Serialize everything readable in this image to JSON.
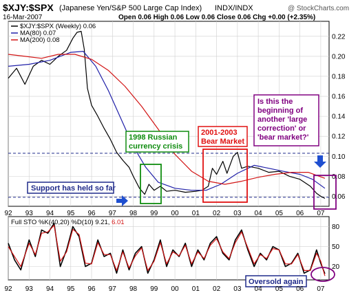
{
  "header": {
    "symbol": "$XJY:$SPX",
    "description": "(Japanese Yen/S&P 500 Large Cap Index)",
    "exchange": "INDX/INDX",
    "watermark": "@ StockCharts.com",
    "date": "16-Mar-2007",
    "ohlc": "Open 0.06  High 0.06  Low 0.06  Close 0.06  Chg +0.00 (+2.35%)"
  },
  "main_legend": [
    {
      "label": "$XJY:$SPX (Weekly) 0.06",
      "color": "#000000"
    },
    {
      "label": "MA(80) 0.07",
      "color": "#1f1fa8"
    },
    {
      "label": "MA(200) 0.08",
      "color": "#d21414"
    }
  ],
  "sto_legend": {
    "prefix": "Full STO %K(40,20) %D(10) 9.21, ",
    "value2": "6.01",
    "value2_color": "#d21414"
  },
  "annotations": {
    "russian": [
      "1998 Russian",
      "currency crisis"
    ],
    "bear": [
      "2001-2003",
      "Bear Market"
    ],
    "question": [
      "Is this the",
      "beginning of",
      "another 'large",
      "correction' or",
      "'bear market?'"
    ],
    "support": "Support has held so far",
    "oversold": "Oversold again"
  },
  "colors": {
    "price": "#000000",
    "ma80": "#1f1fa8",
    "ma200": "#d21414",
    "green": "#0f8c0f",
    "red": "#e01010",
    "purple": "#800080",
    "navy": "#1f2a8a",
    "grid": "#cfcfcf"
  },
  "chart_data": [
    {
      "type": "line",
      "title": "$XJY:$SPX",
      "x_ticks": [
        "92",
        "93",
        "94",
        "95",
        "96",
        "97",
        "98",
        "99",
        "00",
        "01",
        "02",
        "03",
        "04",
        "05",
        "06",
        "07"
      ],
      "x_range": [
        1992.0,
        2007.4
      ],
      "ylim": [
        0.05,
        0.235
      ],
      "y_ticks": [
        0.06,
        0.08,
        0.1,
        0.12,
        0.14,
        0.16,
        0.18,
        0.2,
        0.22
      ],
      "y_tick_labels": [
        "0.06",
        "0.08",
        "0.10",
        "0.12",
        "0.14",
        "0.16",
        "0.18",
        "0.20",
        "0.22"
      ],
      "grid": true,
      "reference_lines": [
        0.103,
        0.059
      ],
      "series": [
        {
          "name": "$XJY:$SPX (Weekly) 0.06",
          "x": [
            1992.0,
            1992.4,
            1992.8,
            1993.2,
            1993.6,
            1994.0,
            1994.4,
            1994.8,
            1995.1,
            1995.3,
            1995.5,
            1995.65,
            1995.8,
            1996.0,
            1996.3,
            1996.6,
            1996.9,
            1997.2,
            1997.5,
            1997.8,
            1998.0,
            1998.3,
            1998.55,
            1998.75,
            1999.0,
            1999.3,
            1999.6,
            2000.0,
            2000.5,
            2001.0,
            2001.3,
            2001.6,
            2001.8,
            2002.0,
            2002.3,
            2002.5,
            2002.8,
            2003.0,
            2003.2,
            2003.5,
            2004.0,
            2004.5,
            2005.0,
            2005.5,
            2006.0,
            2006.5,
            2006.8,
            2007.0,
            2007.2
          ],
          "values": [
            0.178,
            0.188,
            0.172,
            0.19,
            0.196,
            0.192,
            0.2,
            0.206,
            0.218,
            0.224,
            0.225,
            0.207,
            0.168,
            0.151,
            0.14,
            0.128,
            0.117,
            0.104,
            0.096,
            0.089,
            0.08,
            0.068,
            0.062,
            0.072,
            0.066,
            0.07,
            0.065,
            0.066,
            0.064,
            0.065,
            0.066,
            0.07,
            0.088,
            0.082,
            0.095,
            0.083,
            0.1,
            0.104,
            0.088,
            0.09,
            0.088,
            0.084,
            0.085,
            0.08,
            0.077,
            0.07,
            0.063,
            0.06,
            0.058
          ]
        },
        {
          "name": "MA(80) 0.07",
          "x": [
            1992.0,
            1993.0,
            1994.0,
            1995.0,
            1995.6,
            1996.2,
            1996.8,
            1997.4,
            1998.0,
            1998.6,
            1999.2,
            2000.0,
            2000.8,
            2001.5,
            2002.2,
            2003.0,
            2003.8,
            2004.5,
            2005.2,
            2006.0,
            2006.6,
            2007.2
          ],
          "values": [
            0.19,
            0.192,
            0.196,
            0.204,
            0.205,
            0.19,
            0.166,
            0.138,
            0.11,
            0.089,
            0.074,
            0.068,
            0.066,
            0.066,
            0.072,
            0.083,
            0.091,
            0.088,
            0.085,
            0.082,
            0.077,
            0.068
          ]
        },
        {
          "name": "MA(200) 0.08",
          "x": [
            1992.0,
            1992.8,
            1993.6,
            1994.4,
            1995.2,
            1996.0,
            1996.8,
            1997.6,
            1998.4,
            1999.2,
            2000.0,
            2000.8,
            2001.6,
            2002.4,
            2003.2,
            2004.0,
            2004.8,
            2005.6,
            2006.4,
            2007.2
          ],
          "values": [
            0.202,
            0.2,
            0.198,
            0.202,
            0.202,
            0.197,
            0.186,
            0.17,
            0.15,
            0.127,
            0.102,
            0.085,
            0.075,
            0.072,
            0.075,
            0.079,
            0.082,
            0.084,
            0.084,
            0.078
          ]
        }
      ]
    },
    {
      "type": "line",
      "title": "Full STO %K(40,20) %D(10) 9.21, 6.01",
      "x_ticks": [
        "92",
        "93",
        "94",
        "95",
        "96",
        "97",
        "98",
        "99",
        "00",
        "01",
        "02",
        "03",
        "04",
        "05",
        "06",
        "07"
      ],
      "x_range": [
        1992.0,
        2007.4
      ],
      "ylim": [
        0,
        95
      ],
      "y_ticks": [
        20,
        50,
        80
      ],
      "y_tick_labels": [
        "20",
        "50",
        "80"
      ],
      "grid": true,
      "series": [
        {
          "name": "%K",
          "x": [
            1992.0,
            1992.3,
            1992.6,
            1993.0,
            1993.3,
            1993.6,
            1993.9,
            1994.2,
            1994.5,
            1994.8,
            1995.1,
            1995.4,
            1995.7,
            1996.0,
            1996.3,
            1996.6,
            1996.9,
            1997.2,
            1997.5,
            1997.8,
            1998.1,
            1998.4,
            1998.7,
            1999.0,
            1999.3,
            1999.6,
            1999.9,
            2000.2,
            2000.5,
            2000.8,
            2001.1,
            2001.4,
            2001.7,
            2002.0,
            2002.3,
            2002.6,
            2002.9,
            2003.2,
            2003.5,
            2003.8,
            2004.1,
            2004.4,
            2004.7,
            2005.0,
            2005.3,
            2005.6,
            2005.9,
            2006.2,
            2006.5,
            2006.8,
            2007.0,
            2007.2
          ],
          "values": [
            55,
            30,
            15,
            60,
            35,
            75,
            70,
            85,
            20,
            45,
            80,
            65,
            20,
            25,
            60,
            35,
            40,
            10,
            45,
            15,
            40,
            50,
            10,
            30,
            60,
            20,
            45,
            35,
            55,
            20,
            45,
            30,
            55,
            65,
            40,
            30,
            60,
            75,
            45,
            20,
            40,
            30,
            50,
            45,
            20,
            25,
            40,
            10,
            15,
            45,
            25,
            9.21
          ]
        },
        {
          "name": "%D",
          "x": [
            1992.0,
            1992.3,
            1992.6,
            1993.0,
            1993.3,
            1993.6,
            1993.9,
            1994.2,
            1994.5,
            1994.8,
            1995.1,
            1995.4,
            1995.7,
            1996.0,
            1996.3,
            1996.6,
            1996.9,
            1997.2,
            1997.5,
            1997.8,
            1998.1,
            1998.4,
            1998.7,
            1999.0,
            1999.3,
            1999.6,
            1999.9,
            2000.2,
            2000.5,
            2000.8,
            2001.1,
            2001.4,
            2001.7,
            2002.0,
            2002.3,
            2002.6,
            2002.9,
            2003.2,
            2003.5,
            2003.8,
            2004.1,
            2004.4,
            2004.7,
            2005.0,
            2005.3,
            2005.6,
            2005.9,
            2006.2,
            2006.5,
            2006.8,
            2007.0,
            2007.2
          ],
          "values": [
            50,
            35,
            20,
            55,
            38,
            70,
            72,
            82,
            28,
            42,
            76,
            68,
            25,
            24,
            56,
            38,
            38,
            14,
            42,
            18,
            36,
            48,
            14,
            28,
            56,
            24,
            42,
            36,
            52,
            24,
            42,
            32,
            52,
            62,
            42,
            32,
            56,
            72,
            48,
            24,
            38,
            32,
            47,
            45,
            24,
            24,
            38,
            14,
            14,
            40,
            28,
            6.01
          ]
        }
      ]
    }
  ]
}
